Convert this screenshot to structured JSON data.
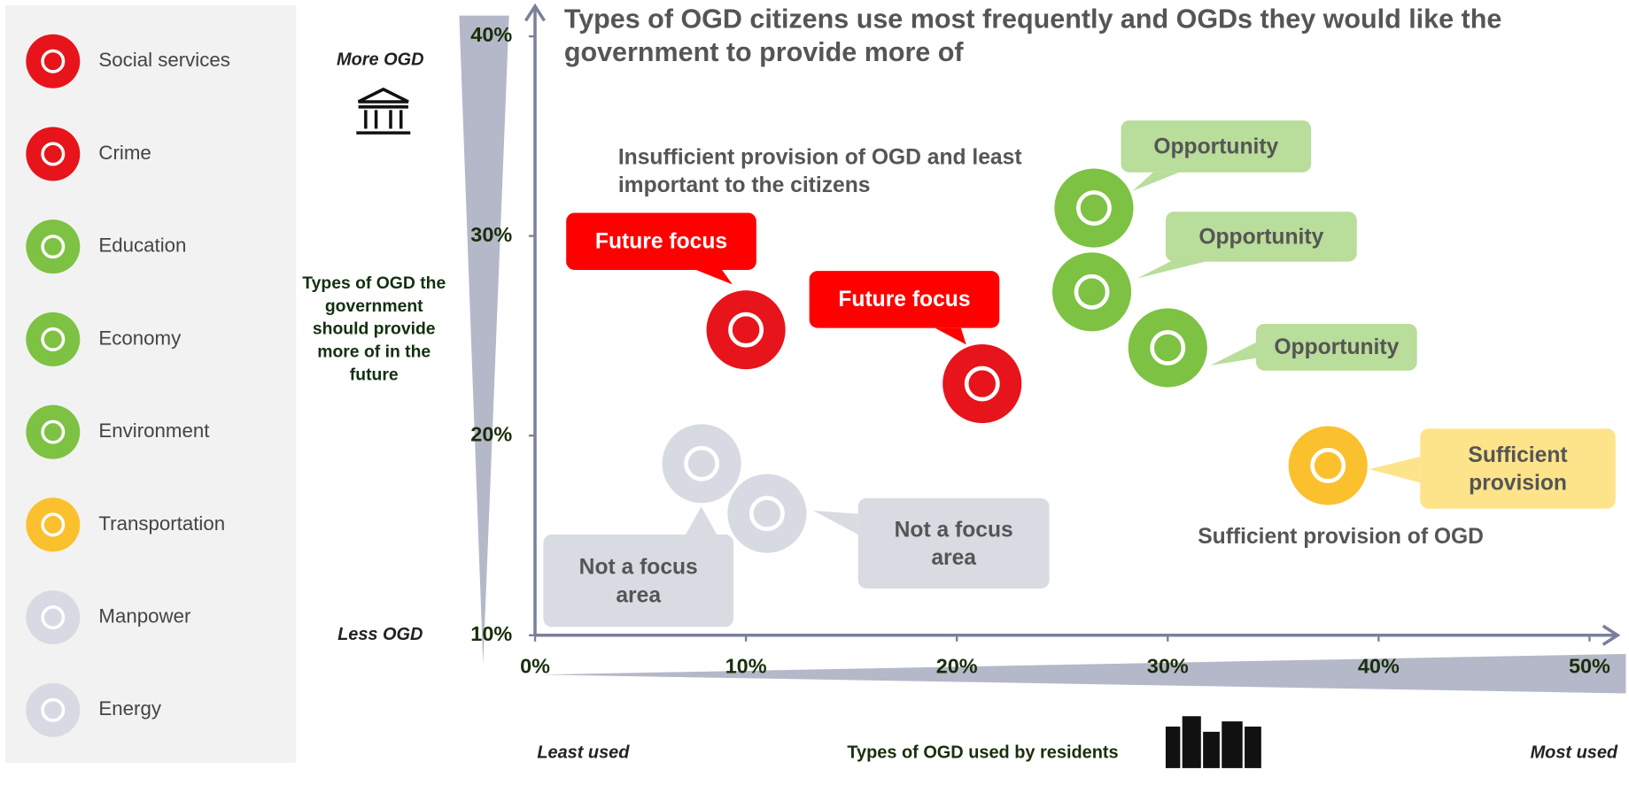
{
  "chart_data": {
    "type": "scatter",
    "title": "Types of OGD citizens use most frequently and OGDs they would like the government to provide more of",
    "xlabel": "Types of OGD used by residents",
    "ylabel": "Types of OGD the government should provide more of in the future",
    "y_top_note": "More OGD",
    "y_bottom_note": "Less OGD",
    "x_left_note": "Least used",
    "x_right_note": "Most used",
    "quadrant_labels": [
      "Insufficient provision of OGD and least important to the citizens",
      "Sufficient provision of OGD"
    ],
    "xlim": [
      0,
      50
    ],
    "ylim": [
      10,
      40
    ],
    "xticks": [
      {
        "value": 0,
        "label": "0%"
      },
      {
        "value": 10,
        "label": "10%"
      },
      {
        "value": 20,
        "label": "20%"
      },
      {
        "value": 30,
        "label": "30%"
      },
      {
        "value": 40,
        "label": "40%"
      },
      {
        "value": 50,
        "label": "50%"
      }
    ],
    "yticks": [
      {
        "value": 10,
        "label": "10%"
      },
      {
        "value": 20,
        "label": "20%"
      },
      {
        "value": 30,
        "label": "30%"
      },
      {
        "value": 40,
        "label": "40%"
      }
    ],
    "series": [
      {
        "name": "Social services",
        "color": "#e8141b",
        "x": [
          21.2
        ],
        "values": [
          22.6
        ],
        "callout": "Future focus"
      },
      {
        "name": "Crime",
        "color": "#e8141b",
        "x": [
          10.0
        ],
        "values": [
          25.3
        ],
        "callout": "Future focus"
      },
      {
        "name": "Education",
        "color": "#7dc242",
        "x": [
          30.0
        ],
        "values": [
          24.4
        ],
        "callout": "Opportunity"
      },
      {
        "name": "Economy",
        "color": "#7dc242",
        "x": [
          26.5
        ],
        "values": [
          31.4
        ],
        "callout": "Opportunity"
      },
      {
        "name": "Environment",
        "color": "#7dc242",
        "x": [
          26.4
        ],
        "values": [
          27.2
        ],
        "callout": "Opportunity"
      },
      {
        "name": "Transportation",
        "color": "#fbc02d",
        "x": [
          37.6
        ],
        "values": [
          18.5
        ],
        "callout": "Sufficient provision"
      },
      {
        "name": "Manpower",
        "color": "#d8dae3",
        "x": [
          11.0
        ],
        "values": [
          16.1
        ],
        "callout": "Not a focus area"
      },
      {
        "name": "Energy",
        "color": "#d8dae3",
        "x": [
          7.9
        ],
        "values": [
          18.6
        ],
        "callout": "Not a focus area"
      }
    ]
  }
}
